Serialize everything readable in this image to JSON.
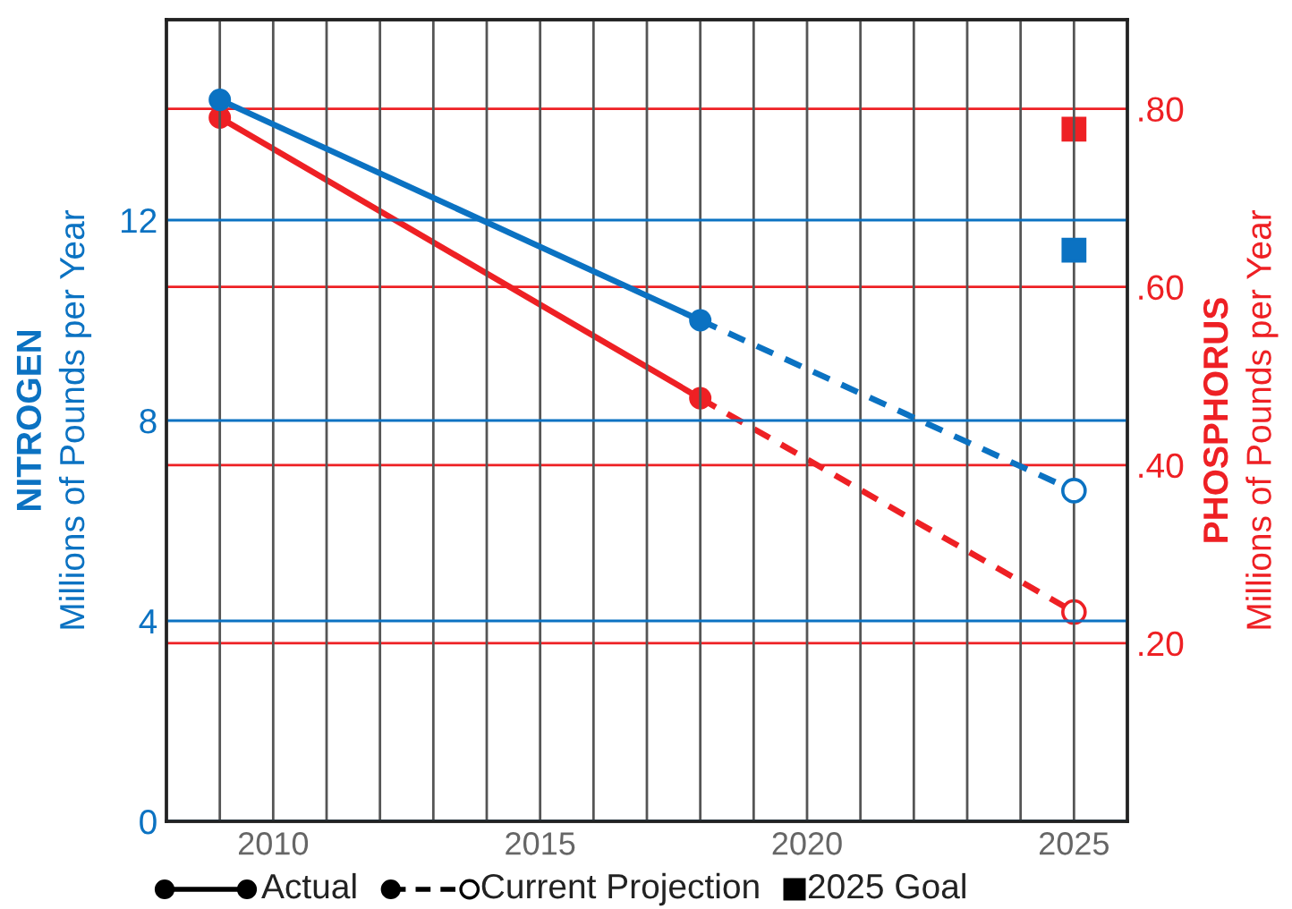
{
  "chart_data": {
    "type": "line",
    "ylabel": "NITROGEN\nMillions of Pounds per Year",
    "y2label": "PHOSPHORUS\nMillions of Pounds per Year",
    "xlim": [
      2008,
      2026
    ],
    "xticks": [
      {
        "value": 2009,
        "label": null
      },
      2010,
      {
        "value": 2011,
        "label": null
      },
      {
        "value": 2012,
        "label": null
      },
      {
        "value": 2013,
        "label": null
      },
      {
        "value": 2014,
        "label": null
      },
      2015,
      {
        "value": 2016,
        "label": null
      },
      {
        "value": 2017,
        "label": null
      },
      {
        "value": 2018,
        "label": null
      },
      {
        "value": 2019,
        "label": null
      },
      2020,
      {
        "value": 2021,
        "label": null
      },
      {
        "value": 2022,
        "label": null
      },
      {
        "value": 2023,
        "label": null
      },
      {
        "value": 2024,
        "label": null
      },
      2025
    ],
    "ylim": [
      0,
      16
    ],
    "yticks": [
      0,
      4,
      8,
      12
    ],
    "y2lim": [
      0,
      0.9
    ],
    "y2ticks": [
      {
        "value": 0.2,
        "label": ".20"
      },
      {
        "value": 0.4,
        "label": ".40"
      },
      {
        "value": 0.6,
        "label": ".60"
      },
      {
        "value": 0.8,
        "label": ".80"
      }
    ],
    "grid": true,
    "annotations": [
      "Actual",
      "Current Projection",
      "2025 Goal"
    ],
    "series": [
      {
        "color": "#0b72c2",
        "x": [
          2009,
          2018
        ],
        "values": [
          14.4,
          10.0
        ],
        "line_style": "solid",
        "marker": "circle"
      },
      {
        "color": "#ee2024",
        "x": [
          2009,
          2018
        ],
        "values": [
          0.79,
          0.475
        ],
        "line_style": "solid",
        "marker": "circle",
        "axis": "y2"
      },
      {
        "color": "#0b72c2",
        "x": [
          2018,
          2025
        ],
        "values": [
          10.0,
          6.6
        ],
        "line_style": "dashed",
        "marker": "circle"
      },
      {
        "color": "#ee2024",
        "x": [
          2018,
          2025
        ],
        "values": [
          0.475,
          0.235
        ],
        "line_style": "dashed",
        "marker": "circle",
        "axis": "y2"
      },
      {
        "type": "scatter",
        "color": "#0b72c2",
        "x": [
          2025
        ],
        "values": [
          11.4
        ],
        "marker": "square"
      },
      {
        "type": "scatter",
        "color": "#ee2024",
        "x": [
          2025
        ],
        "values": [
          0.777
        ],
        "marker": "square",
        "axis": "y2"
      }
    ]
  }
}
